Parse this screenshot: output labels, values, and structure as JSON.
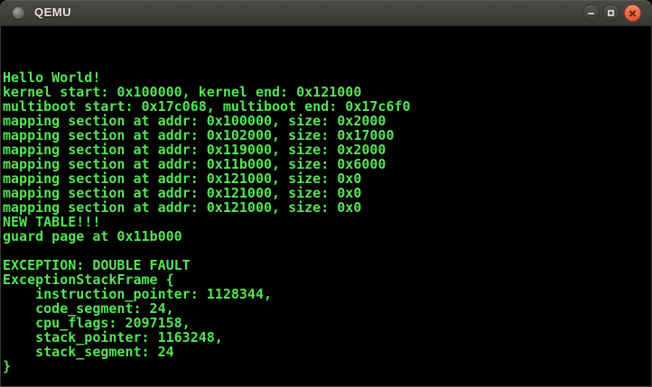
{
  "window": {
    "title": "QEMU",
    "titlebar": {
      "buttons": {
        "minimize": "Minimize",
        "maximize": "Maximize",
        "close": "Close"
      }
    }
  },
  "colors": {
    "terminal_green": "#54e654",
    "terminal_bg": "#000000",
    "titlebar_bg": "#413f3b",
    "close_button_orange": "#ea6a41"
  },
  "terminal": {
    "cols": 80,
    "rows": 25,
    "lines": [
      "",
      "",
      "",
      "Hello World!",
      "kernel start: 0x100000, kernel end: 0x121000",
      "multiboot start: 0x17c068, multiboot end: 0x17c6f0",
      "mapping section at addr: 0x100000, size: 0x2000",
      "mapping section at addr: 0x102000, size: 0x17000",
      "mapping section at addr: 0x119000, size: 0x2000",
      "mapping section at addr: 0x11b000, size: 0x6000",
      "mapping section at addr: 0x121000, size: 0x0",
      "mapping section at addr: 0x121000, size: 0x0",
      "mapping section at addr: 0x121000, size: 0x0",
      "NEW TABLE!!!",
      "guard page at 0x11b000",
      "",
      "EXCEPTION: DOUBLE FAULT",
      "ExceptionStackFrame {",
      "    instruction_pointer: 1128344,",
      "    code_segment: 24,",
      "    cpu_flags: 2097158,",
      "    stack_pointer: 1163248,",
      "    stack_segment: 24",
      "}",
      ""
    ]
  }
}
